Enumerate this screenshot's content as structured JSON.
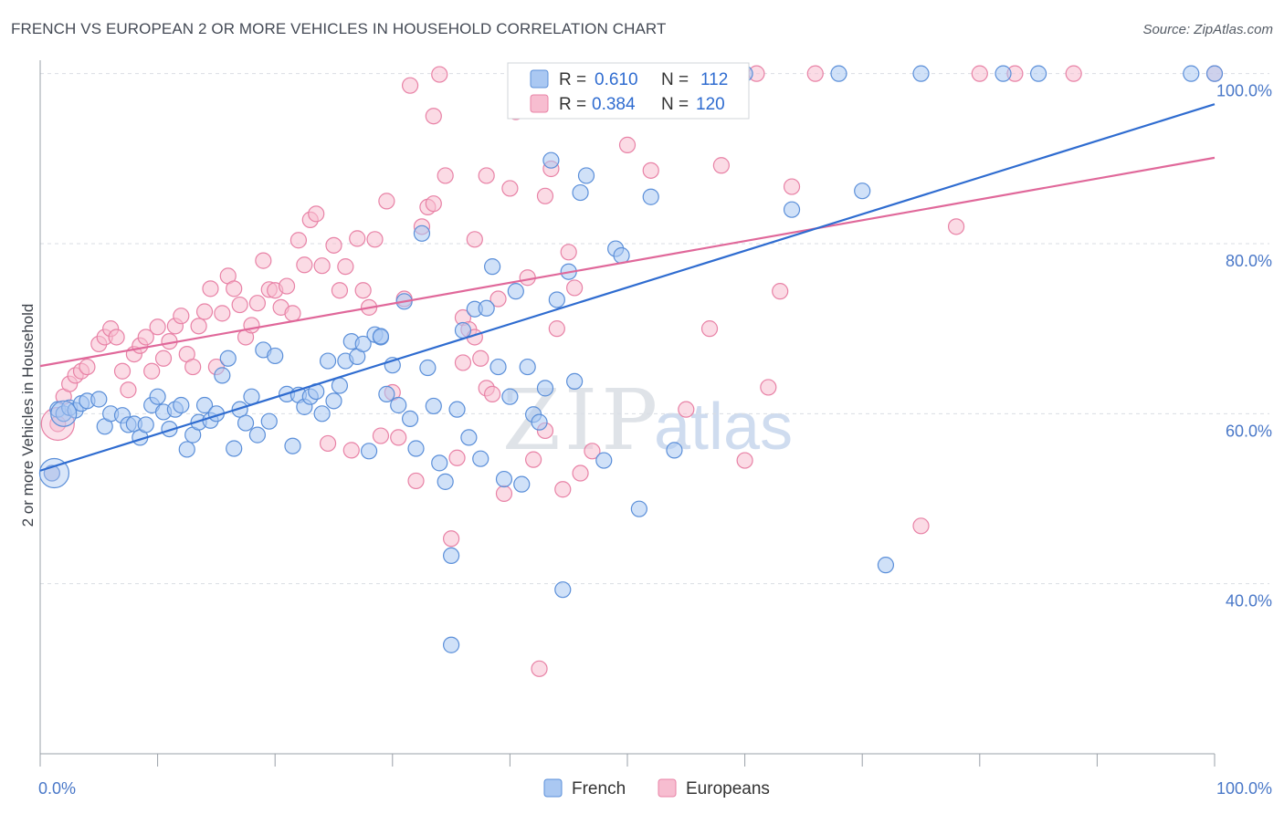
{
  "title": "FRENCH VS EUROPEAN 2 OR MORE VEHICLES IN HOUSEHOLD CORRELATION CHART",
  "source": "Source: ZipAtlas.com",
  "watermark": {
    "zip": "ZIP",
    "atlas": "atlas"
  },
  "colors": {
    "french_fill": "#aac8f2",
    "french_stroke": "#5b8fd9",
    "french_line": "#2f6cd0",
    "europeans_fill": "#f7bdd0",
    "europeans_stroke": "#e882a6",
    "europeans_line": "#e0689a",
    "axis_label": "#4a78c8",
    "grid": "#d9dde3"
  },
  "legend": {
    "french": {
      "r_label": "R = ",
      "r_value": "0.610",
      "n_label": "N = ",
      "n_value": "112"
    },
    "europeans": {
      "r_label": "R = ",
      "r_value": "0.384",
      "n_label": "N = ",
      "n_value": "120"
    }
  },
  "bottom_legend": [
    "French",
    "Europeans"
  ],
  "chart_data": {
    "type": "scatter",
    "xlabel": "",
    "ylabel": "2 or more Vehicles in Household",
    "xlim": [
      0,
      100
    ],
    "ylim": [
      20,
      102
    ],
    "x_tick_labels": [
      "0.0%",
      "100.0%"
    ],
    "y_ticks": [
      40,
      60,
      80,
      100
    ],
    "y_tick_labels": [
      "40.0%",
      "60.0%",
      "80.0%",
      "100.0%"
    ],
    "grid": true,
    "legend_position": "top-center",
    "series": [
      {
        "name": "French",
        "trend": {
          "x": [
            0,
            100
          ],
          "y": [
            53.3,
            96.4
          ]
        },
        "points": [
          [
            1,
            53
          ],
          [
            1.5,
            60.5
          ],
          [
            2,
            60
          ],
          [
            2.5,
            60.7
          ],
          [
            3,
            60.4
          ],
          [
            3.5,
            61.2
          ],
          [
            4,
            61.5
          ],
          [
            5,
            61.7
          ],
          [
            5.5,
            58.5
          ],
          [
            6,
            60
          ],
          [
            7,
            59.8
          ],
          [
            7.5,
            58.7
          ],
          [
            8,
            58.8
          ],
          [
            8.5,
            57.2
          ],
          [
            9,
            58.7
          ],
          [
            9.5,
            61
          ],
          [
            10,
            62
          ],
          [
            10.5,
            60.2
          ],
          [
            11,
            58.2
          ],
          [
            11.5,
            60.5
          ],
          [
            12,
            61
          ],
          [
            12.5,
            55.8
          ],
          [
            13,
            57.5
          ],
          [
            13.5,
            59
          ],
          [
            14,
            61
          ],
          [
            14.5,
            59.2
          ],
          [
            15,
            60
          ],
          [
            15.5,
            64.5
          ],
          [
            16,
            66.5
          ],
          [
            16.5,
            55.9
          ],
          [
            17,
            60.5
          ],
          [
            17.5,
            58.9
          ],
          [
            18,
            62
          ],
          [
            18.5,
            57.5
          ],
          [
            19,
            67.5
          ],
          [
            19.5,
            59.1
          ],
          [
            20,
            66.8
          ],
          [
            21,
            62.3
          ],
          [
            21.5,
            56.2
          ],
          [
            22,
            62.2
          ],
          [
            22.5,
            60.8
          ],
          [
            23,
            62
          ],
          [
            23.5,
            62.6
          ],
          [
            24,
            60
          ],
          [
            24.5,
            66.2
          ],
          [
            25,
            61.5
          ],
          [
            25.5,
            63.3
          ],
          [
            26,
            66.2
          ],
          [
            26.5,
            68.5
          ],
          [
            27,
            66.7
          ],
          [
            27.5,
            68.2
          ],
          [
            28,
            55.6
          ],
          [
            28.5,
            69.3
          ],
          [
            29,
            69
          ],
          [
            29.5,
            62.3
          ],
          [
            30,
            65.7
          ],
          [
            30.5,
            61
          ],
          [
            31,
            73.2
          ],
          [
            31.5,
            59.4
          ],
          [
            32,
            55.9
          ],
          [
            32.5,
            81.2
          ],
          [
            33,
            65.4
          ],
          [
            33.5,
            60.9
          ],
          [
            34,
            54.2
          ],
          [
            34.5,
            52
          ],
          [
            35,
            43.3
          ],
          [
            35.5,
            60.5
          ],
          [
            36,
            69.8
          ],
          [
            36.5,
            57.2
          ],
          [
            37,
            72.3
          ],
          [
            37.5,
            54.7
          ],
          [
            38,
            72.4
          ],
          [
            38.5,
            77.3
          ],
          [
            39,
            65.5
          ],
          [
            39.5,
            52.3
          ],
          [
            40,
            62
          ],
          [
            40.5,
            74.4
          ],
          [
            41,
            51.7
          ],
          [
            41.5,
            65.5
          ],
          [
            42,
            59.9
          ],
          [
            42.5,
            59
          ],
          [
            43,
            63
          ],
          [
            43.5,
            89.8
          ],
          [
            44,
            73.4
          ],
          [
            44.5,
            39.3
          ],
          [
            45,
            76.7
          ],
          [
            45.5,
            63.8
          ],
          [
            46,
            86
          ],
          [
            46.5,
            88
          ],
          [
            47,
            100
          ],
          [
            48,
            54.5
          ],
          [
            49,
            79.4
          ],
          [
            49.5,
            78.6
          ],
          [
            51,
            48.8
          ],
          [
            52,
            85.5
          ],
          [
            54,
            55.7
          ],
          [
            56,
            100
          ],
          [
            60,
            100
          ],
          [
            64,
            84
          ],
          [
            68,
            100
          ],
          [
            70,
            86.2
          ],
          [
            72,
            42.2
          ],
          [
            75,
            100
          ],
          [
            82,
            100
          ],
          [
            85,
            100
          ],
          [
            98,
            100
          ],
          [
            100,
            100
          ],
          [
            35,
            32.8
          ],
          [
            29,
            69.1
          ]
        ]
      },
      {
        "name": "Europeans",
        "trend": {
          "x": [
            0,
            100
          ],
          "y": [
            65.6,
            90.1
          ]
        },
        "points": [
          [
            1,
            53
          ],
          [
            1.5,
            58.8
          ],
          [
            2,
            62
          ],
          [
            2.5,
            63.5
          ],
          [
            3,
            64.5
          ],
          [
            3.5,
            65
          ],
          [
            4,
            65.5
          ],
          [
            5,
            68.2
          ],
          [
            5.5,
            69
          ],
          [
            6,
            70
          ],
          [
            6.5,
            69
          ],
          [
            7,
            65
          ],
          [
            7.5,
            62.8
          ],
          [
            8,
            67
          ],
          [
            8.5,
            68
          ],
          [
            9,
            69
          ],
          [
            9.5,
            65
          ],
          [
            10,
            70.2
          ],
          [
            10.5,
            66.5
          ],
          [
            11,
            68.5
          ],
          [
            11.5,
            70.3
          ],
          [
            12,
            71.5
          ],
          [
            12.5,
            67
          ],
          [
            13,
            65.5
          ],
          [
            13.5,
            70.3
          ],
          [
            14,
            72
          ],
          [
            14.5,
            74.7
          ],
          [
            15,
            65.5
          ],
          [
            15.5,
            71.8
          ],
          [
            16,
            76.2
          ],
          [
            16.5,
            74.7
          ],
          [
            17,
            72.8
          ],
          [
            17.5,
            69
          ],
          [
            18,
            70.4
          ],
          [
            18.5,
            73
          ],
          [
            19,
            78
          ],
          [
            19.5,
            74.6
          ],
          [
            20,
            74.5
          ],
          [
            20.5,
            72.5
          ],
          [
            21,
            75
          ],
          [
            21.5,
            71.8
          ],
          [
            22,
            80.4
          ],
          [
            22.5,
            77.5
          ],
          [
            23,
            82.8
          ],
          [
            23.5,
            83.5
          ],
          [
            24,
            77.4
          ],
          [
            24.5,
            56.5
          ],
          [
            25,
            79.8
          ],
          [
            25.5,
            74.5
          ],
          [
            26,
            77.3
          ],
          [
            26.5,
            55.7
          ],
          [
            27,
            80.6
          ],
          [
            27.5,
            74.5
          ],
          [
            28,
            72.5
          ],
          [
            28.5,
            80.5
          ],
          [
            29,
            57.4
          ],
          [
            29.5,
            85
          ],
          [
            30,
            62.5
          ],
          [
            30.5,
            57.2
          ],
          [
            31,
            73.5
          ],
          [
            31.5,
            98.6
          ],
          [
            32,
            52.1
          ],
          [
            32.5,
            82
          ],
          [
            33,
            84.3
          ],
          [
            33.5,
            95
          ],
          [
            34,
            99.9
          ],
          [
            34.5,
            88
          ],
          [
            35,
            45.3
          ],
          [
            35.5,
            54.8
          ],
          [
            36,
            71.3
          ],
          [
            36.5,
            69.9
          ],
          [
            37,
            80.5
          ],
          [
            37.5,
            66.5
          ],
          [
            38,
            63
          ],
          [
            38.5,
            62.3
          ],
          [
            39,
            73.5
          ],
          [
            39.5,
            50.6
          ],
          [
            40,
            86.5
          ],
          [
            40.5,
            95.5
          ],
          [
            41,
            100
          ],
          [
            41.5,
            76
          ],
          [
            42,
            54.6
          ],
          [
            42.5,
            30
          ],
          [
            43,
            85.6
          ],
          [
            43.5,
            88.8
          ],
          [
            44,
            100
          ],
          [
            44.5,
            51.1
          ],
          [
            45,
            79
          ],
          [
            45.5,
            74.8
          ],
          [
            46,
            53
          ],
          [
            47,
            55.6
          ],
          [
            48,
            96.2
          ],
          [
            50,
            91.6
          ],
          [
            52,
            88.6
          ],
          [
            54,
            95.8
          ],
          [
            55,
            60.5
          ],
          [
            57,
            70
          ],
          [
            58,
            89.2
          ],
          [
            60,
            54.5
          ],
          [
            61,
            100
          ],
          [
            62,
            63.1
          ],
          [
            63,
            74.4
          ],
          [
            64,
            86.7
          ],
          [
            66,
            100
          ],
          [
            75,
            46.8
          ],
          [
            78,
            82
          ],
          [
            80,
            100
          ],
          [
            83,
            100
          ],
          [
            88,
            100
          ],
          [
            100,
            100
          ],
          [
            41,
            97.6
          ],
          [
            33.5,
            84.7
          ],
          [
            37,
            69
          ],
          [
            43,
            58
          ],
          [
            36,
            66
          ],
          [
            38,
            88
          ],
          [
            40.5,
            99.8
          ],
          [
            44,
            70
          ]
        ]
      }
    ]
  }
}
